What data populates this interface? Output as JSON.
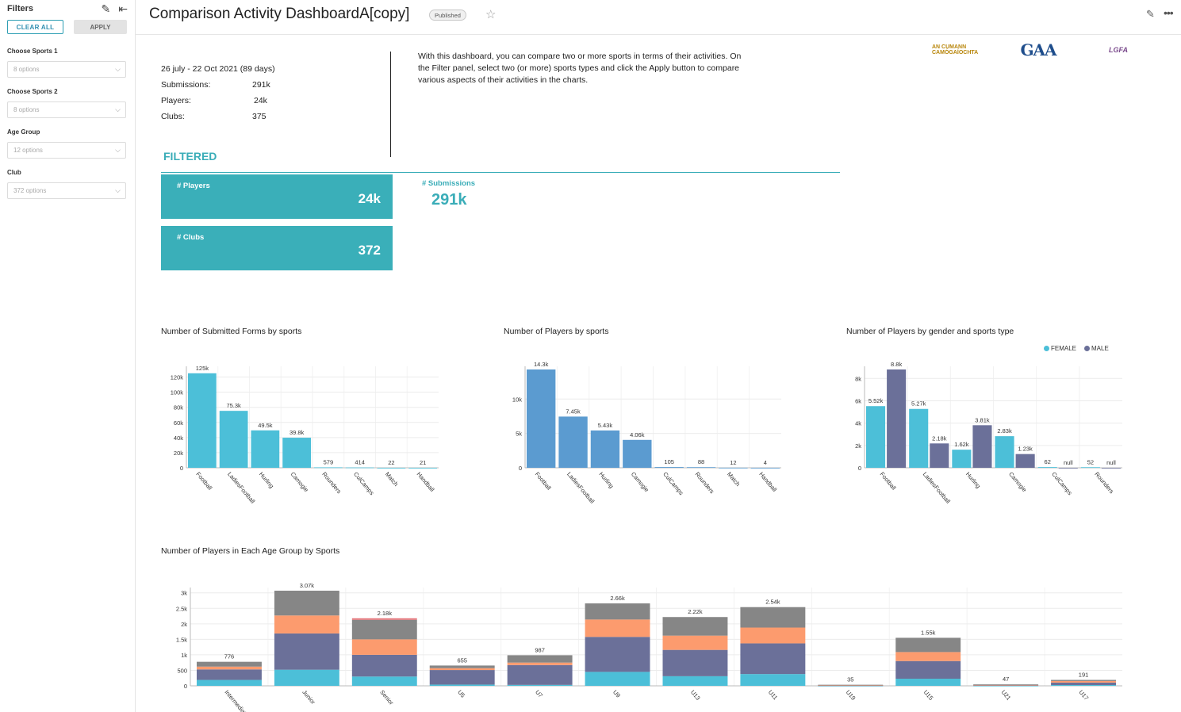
{
  "sidebar": {
    "title": "Filters",
    "clear_label": "CLEAR ALL",
    "apply_label": "APPLY",
    "filters": [
      {
        "label": "Choose Sports 1",
        "placeholder": "8 options"
      },
      {
        "label": "Choose Sports 2",
        "placeholder": "8 options"
      },
      {
        "label": "Age Group",
        "placeholder": "12 options"
      },
      {
        "label": "Club",
        "placeholder": "372 options"
      }
    ]
  },
  "header": {
    "title": "Comparison Activity DashboardA[copy]",
    "badge": "Published"
  },
  "info": {
    "date_range": "26 july - 22 Oct 2021 (89 days)",
    "rows": [
      {
        "label": "Submissions:",
        "value": "291k"
      },
      {
        "label": "Players:",
        "value": "24k"
      },
      {
        "label": "Clubs:",
        "value": "375"
      }
    ],
    "description": "With this dashboard, you can compare two or more sports in terms of their activities. On the Filter panel, select two (or more) sports types and click the Apply button to compare various aspects of their activities in the charts."
  },
  "logos": {
    "camogie": "AN CUMANN CAMÓGAÍOCHTA",
    "gaa": "GAA",
    "lgfa": "LGFA"
  },
  "filtered": {
    "label": "FILTERED",
    "players_label": "# Players",
    "players_value": "24k",
    "clubs_label": "# Clubs",
    "clubs_value": "372",
    "submissions_label": "# Submissions",
    "submissions_value": "291k"
  },
  "colors": {
    "teal": "#3aafb9",
    "blue": "#5b9bd0",
    "cyan": "#4cbfd8",
    "purple": "#6b7099",
    "orange": "#fc9b6e",
    "gray": "#868686",
    "red": "#e5767b"
  },
  "chart_data": [
    {
      "type": "bar",
      "title": "Number of Submitted Forms by sports",
      "categories": [
        "Football",
        "LadiesFootball",
        "Hurling",
        "Camogie",
        "Rounders",
        "CulCamps",
        "Match",
        "Handball"
      ],
      "values": [
        125000,
        75300,
        49500,
        39800,
        579,
        414,
        22,
        21
      ],
      "data_labels": [
        "125k",
        "75.3k",
        "49.5k",
        "39.8k",
        "579",
        "414",
        "22",
        "21"
      ],
      "ylim": [
        0,
        130000
      ],
      "yticks": [
        0,
        20000,
        40000,
        60000,
        80000,
        100000,
        120000
      ],
      "ytick_labels": [
        "0",
        "20k",
        "40k",
        "60k",
        "80k",
        "100k",
        "120k"
      ]
    },
    {
      "type": "bar",
      "title": "Number of Players by sports",
      "categories": [
        "Football",
        "LadiesFootball",
        "Hurling",
        "Camogie",
        "CulCamps",
        "Rounders",
        "Match",
        "Handball"
      ],
      "values": [
        14300,
        7450,
        5430,
        4060,
        105,
        88,
        12,
        4
      ],
      "data_labels": [
        "14.3k",
        "7.45k",
        "5.43k",
        "4.06k",
        "105",
        "88",
        "12",
        "4"
      ],
      "ylim": [
        0,
        14300
      ],
      "yticks": [
        0,
        5000,
        10000
      ],
      "ytick_labels": [
        "0",
        "5k",
        "10k"
      ]
    },
    {
      "type": "bar",
      "title": "Number of Players by gender and sports type",
      "categories": [
        "Football",
        "LadiesFootball",
        "Hurling",
        "Camogie",
        "CulCamps",
        "Rounders"
      ],
      "series": [
        {
          "name": "FEMALE",
          "values": [
            5520,
            5270,
            1620,
            2830,
            62,
            52
          ],
          "labels": [
            "5.52k",
            "5.27k",
            "1.62k",
            "2.83k",
            "62",
            "52"
          ]
        },
        {
          "name": "MALE",
          "values": [
            8800,
            2180,
            3810,
            1230,
            0,
            0
          ],
          "labels": [
            "8.8k",
            "2.18k",
            "3.81k",
            "1.23k",
            "null",
            "null"
          ]
        }
      ],
      "ylim": [
        0,
        8800
      ],
      "yticks": [
        0,
        2000,
        4000,
        6000,
        8000
      ],
      "ytick_labels": [
        "0",
        "2k",
        "4k",
        "6k",
        "8k"
      ],
      "legend": "top-right"
    },
    {
      "type": "bar",
      "stacked": true,
      "title": "Number of Players in Each Age Group by Sports",
      "categories": [
        "Intermediate",
        "Junior",
        "Senior",
        "U5",
        "U7",
        "U9",
        "U13",
        "U11",
        "U19",
        "U15",
        "U21",
        "U17"
      ],
      "totals": [
        776,
        3070,
        2180,
        655,
        987,
        2660,
        2220,
        2540,
        35,
        1550,
        47,
        191
      ],
      "total_labels": [
        "776",
        "3.07k",
        "2.18k",
        "655",
        "987",
        "2.66k",
        "2.22k",
        "2.54k",
        "35",
        "1.55k",
        "47",
        "191"
      ],
      "series": [
        {
          "values": [
            190,
            520,
            300,
            40,
            30,
            450,
            310,
            380,
            5,
            230,
            5,
            25
          ]
        },
        {
          "values": [
            340,
            1170,
            700,
            470,
            640,
            1130,
            850,
            990,
            10,
            570,
            15,
            80
          ]
        },
        {
          "values": [
            90,
            580,
            500,
            60,
            80,
            560,
            460,
            510,
            8,
            290,
            12,
            50
          ]
        },
        {
          "values": [
            156,
            800,
            630,
            85,
            237,
            520,
            600,
            660,
            12,
            460,
            15,
            36
          ]
        },
        {
          "values": [
            0,
            0,
            50,
            0,
            0,
            0,
            0,
            0,
            0,
            0,
            0,
            0
          ]
        }
      ],
      "ylim": [
        0,
        3070
      ],
      "yticks": [
        0,
        500,
        1000,
        1500,
        2000,
        2500,
        3000
      ],
      "ytick_labels": [
        "0",
        "500",
        "1k",
        "1.5k",
        "2k",
        "2.5k",
        "3k"
      ]
    }
  ]
}
